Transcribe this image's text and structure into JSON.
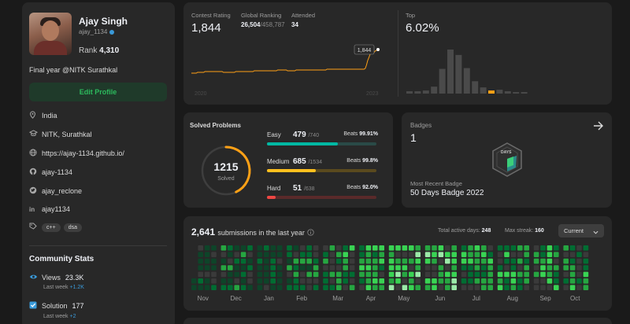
{
  "profile": {
    "name": "Ajay Singh",
    "username": "ajay_1134",
    "rank_label": "Rank",
    "rank": "4,310",
    "bio": "Final year @NITK Surathkal",
    "edit_label": "Edit Profile",
    "location": "India",
    "school": "NITK, Surathkal",
    "website": "https://ajay-1134.github.io/",
    "github": "ajay-1134",
    "twitter": "ajay_reclone",
    "linkedin": "ajay1134",
    "skills": [
      "c++",
      "dsa"
    ]
  },
  "community": {
    "title": "Community Stats",
    "views_label": "Views",
    "views": "23.3K",
    "views_sub_label": "Last week",
    "views_sub": "+1.2K",
    "solution_label": "Solution",
    "solution": "177",
    "solution_sub_label": "Last week",
    "solution_sub": "+2"
  },
  "contest": {
    "rating_label": "Contest Rating",
    "rating": "1,844",
    "global_label": "Global Ranking",
    "global_rank": "26,504",
    "global_total": "/458,787",
    "attended_label": "Attended",
    "attended": "34",
    "tooltip": "1,844",
    "year_start": "2020",
    "year_end": "2023",
    "top_label": "Top",
    "top_value": "6.02%",
    "histogram": [
      3,
      3,
      4,
      9,
      32,
      57,
      50,
      33,
      16,
      8,
      4,
      5,
      3,
      2,
      2
    ],
    "highlight_index": 10,
    "history": [
      38,
      38,
      38,
      38,
      38,
      37,
      37,
      37,
      37,
      37,
      37,
      36,
      36,
      36,
      36,
      36,
      36,
      36,
      36,
      36,
      36,
      36,
      36,
      36,
      36,
      36,
      37,
      37,
      37,
      37,
      37,
      37,
      37,
      37,
      37,
      37,
      36,
      36,
      36,
      36,
      36,
      36,
      36,
      36,
      36,
      36,
      36,
      36,
      36,
      36,
      36,
      35,
      35,
      35,
      35,
      35,
      35,
      35,
      35,
      35,
      35,
      35,
      35,
      35,
      35,
      35,
      35,
      35,
      35,
      35,
      34,
      34,
      34,
      34,
      34,
      34,
      34,
      34,
      35,
      35,
      35,
      35,
      35,
      35,
      35,
      34,
      34,
      34,
      34,
      34,
      34,
      34,
      34,
      34,
      34,
      34,
      34,
      34,
      34,
      34,
      34,
      34,
      34,
      34,
      34,
      34,
      34,
      34,
      34,
      34,
      33,
      33,
      33,
      33,
      33,
      33,
      33,
      33,
      33,
      33,
      33,
      33,
      33,
      33,
      33,
      33,
      33,
      33,
      33,
      33,
      33,
      33,
      33,
      33,
      33,
      33,
      33,
      33,
      33,
      33,
      33,
      32,
      28,
      22,
      18,
      14,
      12,
      13,
      12,
      10,
      9,
      8,
      8
    ]
  },
  "solved": {
    "title": "Solved Problems",
    "total": "1215",
    "total_label": "Solved",
    "ring_fraction": 0.43,
    "rows": [
      {
        "label": "Easy",
        "count": "479",
        "of": "/740",
        "beats_label": "Beats",
        "beats": "99.91%",
        "fraction": 0.647,
        "color": "#00b8a3",
        "track": "#2a4a47"
      },
      {
        "label": "Medium",
        "count": "685",
        "of": "/1534",
        "beats_label": "Beats",
        "beats": "99.8%",
        "fraction": 0.447,
        "color": "#ffc01e",
        "track": "#5a4a1e"
      },
      {
        "label": "Hard",
        "count": "51",
        "of": "/638",
        "beats_label": "Beats",
        "beats": "92.0%",
        "fraction": 0.08,
        "color": "#ef4743",
        "track": "#5a2a2a"
      }
    ]
  },
  "badges": {
    "title": "Badges",
    "count": "1",
    "badge_text": "DAYS",
    "recent_label": "Most Recent Badge",
    "recent_name": "50 Days Badge 2022"
  },
  "heatmap": {
    "count": "2,641",
    "label": "submissions in the last year",
    "active_label": "Total active days:",
    "active": "248",
    "streak_label": "Max streak:",
    "streak": "160",
    "dropdown": "Current",
    "months": [
      "Nov",
      "Dec",
      "Jan",
      "Feb",
      "Mar",
      "Apr",
      "May",
      "Jun",
      "Jul",
      "Aug",
      "Sep",
      "Oct"
    ],
    "colors": [
      "#3a3a3a",
      "#0e4429",
      "#006d32",
      "#26a641",
      "#39d353",
      "#9be9a8"
    ]
  }
}
